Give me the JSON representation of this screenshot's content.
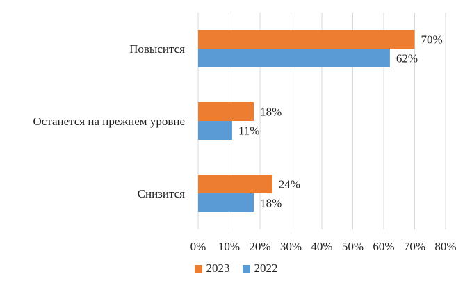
{
  "chart_data": {
    "type": "bar",
    "orientation": "horizontal",
    "categories": [
      "Повысится",
      "Останется на прежнем уровне",
      "Снизится"
    ],
    "series": [
      {
        "name": "2023",
        "values": [
          70,
          18,
          24
        ],
        "labels": [
          "70%",
          "18%",
          "24%"
        ],
        "color": "#ED7D31"
      },
      {
        "name": "2022",
        "values": [
          62,
          11,
          18
        ],
        "labels": [
          "62%",
          "11%",
          "18%"
        ],
        "color": "#5B9BD5"
      }
    ],
    "xlim": [
      0,
      80
    ],
    "xticks": [
      0,
      10,
      20,
      30,
      40,
      50,
      60,
      70,
      80
    ],
    "xtick_labels": [
      "0%",
      "10%",
      "20%",
      "30%",
      "40%",
      "50%",
      "60%",
      "70%",
      "80%"
    ],
    "grid": "vertical",
    "legend_position": "bottom",
    "title": "",
    "xlabel": "",
    "ylabel": ""
  }
}
